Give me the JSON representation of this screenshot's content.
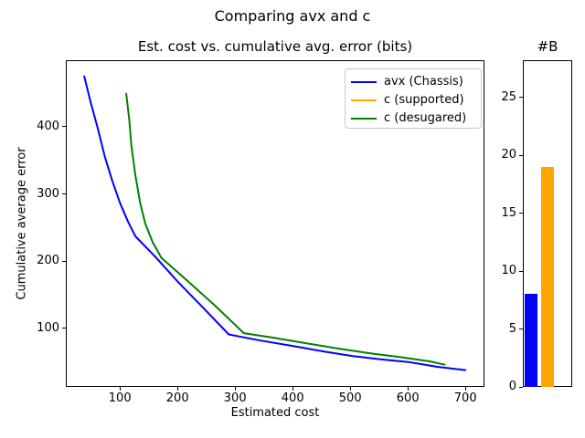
{
  "figure": {
    "title": "Comparing avx and c",
    "background": "#ffffff"
  },
  "colors": {
    "avx": "#0000ff",
    "c_supported": "#ffa500",
    "c_desugared": "#008000",
    "spine": "#000000"
  },
  "chart_data": [
    {
      "type": "line",
      "title": "Est. cost vs. cumulative avg. error (bits)",
      "xlabel": "Estimated cost",
      "ylabel": "Cumulative average error",
      "xlim": [
        6,
        733
      ],
      "ylim": [
        13,
        499
      ],
      "xticks": [
        100,
        200,
        300,
        400,
        500,
        600,
        700
      ],
      "yticks": [
        100,
        200,
        300,
        400
      ],
      "grid": false,
      "legend_position": "upper right",
      "series": [
        {
          "name": "avx (Chassis)",
          "color": "#0000ff",
          "points": [
            [
              38,
              475
            ],
            [
              49,
              437
            ],
            [
              62,
              396
            ],
            [
              74,
              355
            ],
            [
              87,
              319
            ],
            [
              100,
              287
            ],
            [
              114,
              259
            ],
            [
              127,
              237
            ],
            [
              162,
              206
            ],
            [
              201,
              169
            ],
            [
              241,
              134
            ],
            [
              289,
              91
            ],
            [
              344,
              82
            ],
            [
              400,
              74
            ],
            [
              452,
              66
            ],
            [
              503,
              59
            ],
            [
              552,
              54
            ],
            [
              601,
              50
            ],
            [
              650,
              43
            ],
            [
              700,
              38
            ]
          ]
        },
        {
          "name": "c (supported)",
          "color": "#ffa500",
          "points": []
        },
        {
          "name": "c (desugared)",
          "color": "#008000",
          "points": [
            [
              111,
              449
            ],
            [
              116,
              412
            ],
            [
              120,
              371
            ],
            [
              127,
              327
            ],
            [
              135,
              287
            ],
            [
              144,
              256
            ],
            [
              157,
              228
            ],
            [
              172,
              205
            ],
            [
              217,
              171
            ],
            [
              265,
              134
            ],
            [
              315,
              93
            ],
            [
              368,
              86
            ],
            [
              423,
              78
            ],
            [
              479,
              70
            ],
            [
              535,
              63
            ],
            [
              590,
              57
            ],
            [
              638,
              51
            ],
            [
              664,
              46
            ]
          ]
        }
      ]
    },
    {
      "type": "bar",
      "title": "#B",
      "ylim": [
        0,
        28.2
      ],
      "yticks": [
        0,
        5,
        10,
        15,
        20,
        25
      ],
      "num_slots": 3,
      "bars": [
        {
          "color": "#0000ff",
          "value": 8
        },
        {
          "color": "#ffa500",
          "value": 19
        },
        {
          "color": "#008000",
          "value": 0
        }
      ]
    }
  ]
}
